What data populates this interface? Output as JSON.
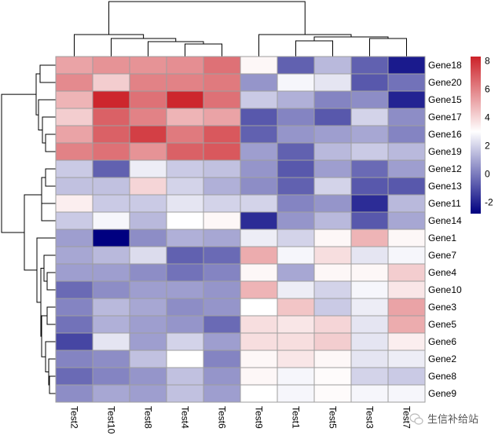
{
  "chart_data": {
    "type": "heatmap",
    "title": "",
    "columns": [
      "Test2",
      "Test10",
      "Test8",
      "Test4",
      "Test6",
      "Test9",
      "Test1",
      "Test5",
      "Test3",
      "Test7"
    ],
    "rows": [
      "Gene18",
      "Gene20",
      "Gene15",
      "Gene17",
      "Gene16",
      "Gene19",
      "Gene12",
      "Gene13",
      "Gene11",
      "Gene14",
      "Gene1",
      "Gene7",
      "Gene4",
      "Gene10",
      "Gene3",
      "Gene5",
      "Gene6",
      "Gene2",
      "Gene8",
      "Gene9"
    ],
    "values": [
      [
        5.2,
        5.6,
        5.6,
        5.7,
        6.4,
        3.2,
        -0.6,
        1.4,
        -0.6,
        -2.2
      ],
      [
        5.8,
        4.2,
        6.0,
        6.0,
        6.2,
        0.6,
        2.8,
        2.4,
        -0.8,
        -0.2
      ],
      [
        4.8,
        8.2,
        6.4,
        8.2,
        6.4,
        1.8,
        1.2,
        0.2,
        0.4,
        -2.0
      ],
      [
        4.2,
        6.8,
        6.0,
        4.8,
        5.2,
        -0.8,
        0.2,
        -0.8,
        2.0,
        0.4
      ],
      [
        5.2,
        6.8,
        7.6,
        6.2,
        7.0,
        -0.6,
        0.6,
        0.8,
        1.0,
        0.2
      ],
      [
        6.0,
        6.4,
        5.6,
        6.8,
        7.0,
        0.8,
        -0.6,
        1.4,
        1.8,
        1.4
      ],
      [
        1.8,
        -0.6,
        2.6,
        1.8,
        1.6,
        0.6,
        -0.8,
        0.8,
        -0.4,
        0.8
      ],
      [
        1.6,
        1.6,
        4.0,
        2.0,
        1.2,
        0.4,
        -0.6,
        2.0,
        -0.8,
        -0.8
      ],
      [
        3.4,
        1.8,
        1.8,
        2.4,
        2.0,
        2.0,
        0.2,
        0.6,
        -1.8,
        1.4
      ],
      [
        1.8,
        2.8,
        1.4,
        3.0,
        3.2,
        -1.8,
        0.6,
        1.4,
        -0.8,
        1.0
      ],
      [
        0.8,
        -2.8,
        0.4,
        1.2,
        1.0,
        2.6,
        2.0,
        3.2,
        4.8,
        3.2
      ],
      [
        1.0,
        1.4,
        2.2,
        -0.6,
        -0.4,
        5.0,
        2.8,
        3.8,
        2.4,
        2.8
      ],
      [
        0.8,
        0.8,
        0.4,
        -0.2,
        0.2,
        3.2,
        1.0,
        3.2,
        3.2,
        4.2
      ],
      [
        -0.4,
        0.4,
        0.8,
        0.8,
        0.6,
        4.8,
        2.6,
        2.0,
        2.8,
        3.6
      ],
      [
        0.2,
        1.4,
        1.0,
        0.4,
        0.6,
        3.0,
        4.4,
        1.8,
        2.6,
        5.2
      ],
      [
        -0.2,
        1.2,
        0.8,
        0.6,
        -0.4,
        3.8,
        3.6,
        4.0,
        2.4,
        5.0
      ],
      [
        -1.2,
        2.4,
        0.8,
        2.0,
        0.8,
        3.8,
        3.8,
        4.2,
        2.4,
        3.4
      ],
      [
        0.2,
        0.4,
        1.6,
        3.0,
        0.2,
        3.2,
        3.6,
        3.2,
        2.4,
        2.6
      ],
      [
        -0.4,
        0.2,
        0.6,
        1.6,
        0.6,
        3.2,
        2.8,
        3.1,
        2.0,
        1.8
      ],
      [
        0.4,
        1.0,
        0.8,
        1.6,
        0.8,
        3.0,
        2.8,
        3.1,
        2.8,
        2.8
      ]
    ],
    "color_scale": {
      "low": "#000080",
      "mid": "#ffffff",
      "high": "#cc2229",
      "min": -2.8,
      "mid_value": 3.0,
      "max": 8.3
    },
    "legend": {
      "ticks": [
        8,
        6,
        4,
        2,
        0,
        -2
      ],
      "tick_labels": [
        "8",
        "6",
        "4",
        "2",
        "0",
        "-2"
      ],
      "placement": "right"
    },
    "col_dendrogram": [
      {
        "left": "Test4",
        "right": "Test6",
        "height": 0.06
      },
      {
        "left": "Test8",
        "right": "Test4+Test6",
        "height": 0.12
      },
      {
        "left": "Test10",
        "right": "Test8+Test4+Test6",
        "height": 0.16
      },
      {
        "left": "Test2",
        "right": "Test10+Test8+Test4+Test6",
        "height": 0.23
      },
      {
        "left": "Test1",
        "right": "Test5",
        "height": 0.15
      },
      {
        "left": "Test3",
        "right": "Test7",
        "height": 0.17
      },
      {
        "left": "Test1+Test5",
        "right": "Test3+Test7",
        "height": 0.2
      },
      {
        "left": "Test9",
        "right": "Test1+Test5+Test3+Test7",
        "height": 0.23
      },
      {
        "left": "left-cluster",
        "right": "right-cluster",
        "height": 1.0
      }
    ],
    "grid_border_color": "#9e9e9e"
  },
  "watermark": {
    "icon": "wechat-icon",
    "text": "生信补给站"
  }
}
